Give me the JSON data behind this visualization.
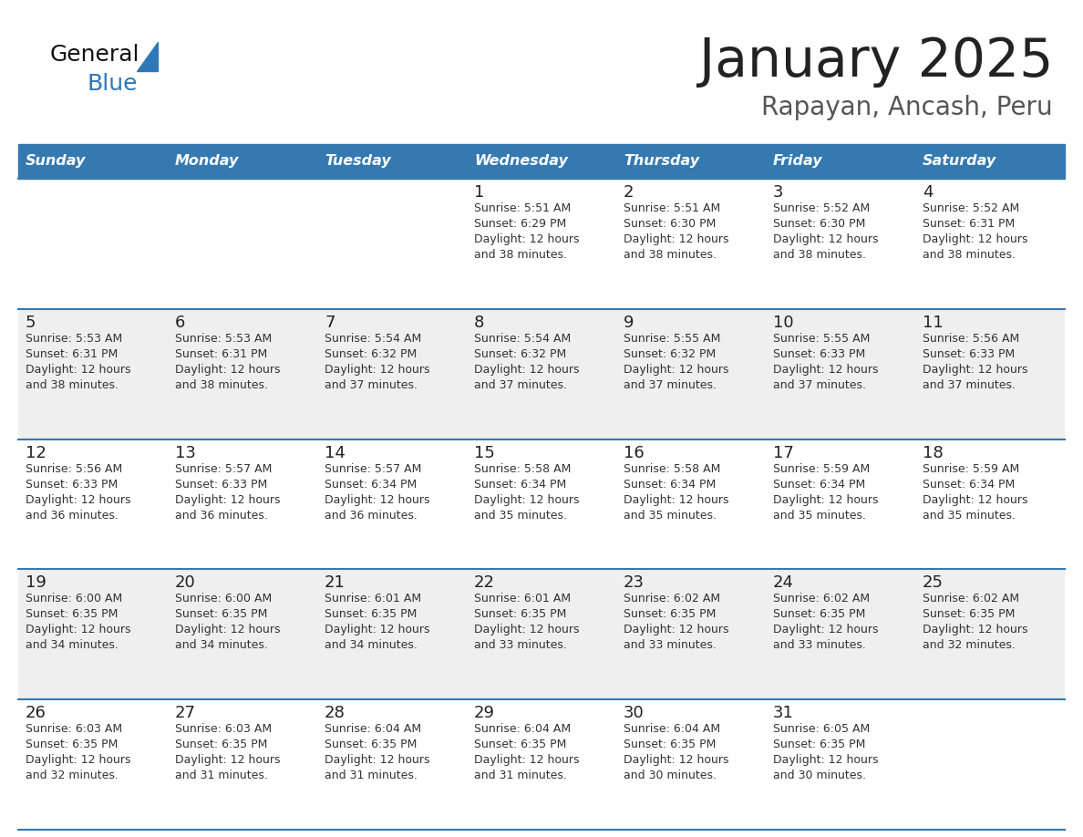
{
  "title": "January 2025",
  "subtitle": "Rapayan, Ancash, Peru",
  "header_color": "#3579B1",
  "header_text_color": "#FFFFFF",
  "cell_bg_color": "#EFEFEF",
  "cell_bg_white": "#FFFFFF",
  "border_color": "#3579B1",
  "day_names": [
    "Sunday",
    "Monday",
    "Tuesday",
    "Wednesday",
    "Thursday",
    "Friday",
    "Saturday"
  ],
  "title_color": "#222222",
  "subtitle_color": "#555555",
  "day_num_color": "#222222",
  "info_color": "#333333",
  "logo_general_color": "#111111",
  "logo_blue_color": "#2E78B8",
  "calendar_data": [
    {
      "day": 1,
      "col": 3,
      "row": 0,
      "sunrise": "5:51 AM",
      "sunset": "6:29 PM",
      "daylight_hours": 12,
      "daylight_mins": 38
    },
    {
      "day": 2,
      "col": 4,
      "row": 0,
      "sunrise": "5:51 AM",
      "sunset": "6:30 PM",
      "daylight_hours": 12,
      "daylight_mins": 38
    },
    {
      "day": 3,
      "col": 5,
      "row": 0,
      "sunrise": "5:52 AM",
      "sunset": "6:30 PM",
      "daylight_hours": 12,
      "daylight_mins": 38
    },
    {
      "day": 4,
      "col": 6,
      "row": 0,
      "sunrise": "5:52 AM",
      "sunset": "6:31 PM",
      "daylight_hours": 12,
      "daylight_mins": 38
    },
    {
      "day": 5,
      "col": 0,
      "row": 1,
      "sunrise": "5:53 AM",
      "sunset": "6:31 PM",
      "daylight_hours": 12,
      "daylight_mins": 38
    },
    {
      "day": 6,
      "col": 1,
      "row": 1,
      "sunrise": "5:53 AM",
      "sunset": "6:31 PM",
      "daylight_hours": 12,
      "daylight_mins": 38
    },
    {
      "day": 7,
      "col": 2,
      "row": 1,
      "sunrise": "5:54 AM",
      "sunset": "6:32 PM",
      "daylight_hours": 12,
      "daylight_mins": 37
    },
    {
      "day": 8,
      "col": 3,
      "row": 1,
      "sunrise": "5:54 AM",
      "sunset": "6:32 PM",
      "daylight_hours": 12,
      "daylight_mins": 37
    },
    {
      "day": 9,
      "col": 4,
      "row": 1,
      "sunrise": "5:55 AM",
      "sunset": "6:32 PM",
      "daylight_hours": 12,
      "daylight_mins": 37
    },
    {
      "day": 10,
      "col": 5,
      "row": 1,
      "sunrise": "5:55 AM",
      "sunset": "6:33 PM",
      "daylight_hours": 12,
      "daylight_mins": 37
    },
    {
      "day": 11,
      "col": 6,
      "row": 1,
      "sunrise": "5:56 AM",
      "sunset": "6:33 PM",
      "daylight_hours": 12,
      "daylight_mins": 37
    },
    {
      "day": 12,
      "col": 0,
      "row": 2,
      "sunrise": "5:56 AM",
      "sunset": "6:33 PM",
      "daylight_hours": 12,
      "daylight_mins": 36
    },
    {
      "day": 13,
      "col": 1,
      "row": 2,
      "sunrise": "5:57 AM",
      "sunset": "6:33 PM",
      "daylight_hours": 12,
      "daylight_mins": 36
    },
    {
      "day": 14,
      "col": 2,
      "row": 2,
      "sunrise": "5:57 AM",
      "sunset": "6:34 PM",
      "daylight_hours": 12,
      "daylight_mins": 36
    },
    {
      "day": 15,
      "col": 3,
      "row": 2,
      "sunrise": "5:58 AM",
      "sunset": "6:34 PM",
      "daylight_hours": 12,
      "daylight_mins": 35
    },
    {
      "day": 16,
      "col": 4,
      "row": 2,
      "sunrise": "5:58 AM",
      "sunset": "6:34 PM",
      "daylight_hours": 12,
      "daylight_mins": 35
    },
    {
      "day": 17,
      "col": 5,
      "row": 2,
      "sunrise": "5:59 AM",
      "sunset": "6:34 PM",
      "daylight_hours": 12,
      "daylight_mins": 35
    },
    {
      "day": 18,
      "col": 6,
      "row": 2,
      "sunrise": "5:59 AM",
      "sunset": "6:34 PM",
      "daylight_hours": 12,
      "daylight_mins": 35
    },
    {
      "day": 19,
      "col": 0,
      "row": 3,
      "sunrise": "6:00 AM",
      "sunset": "6:35 PM",
      "daylight_hours": 12,
      "daylight_mins": 34
    },
    {
      "day": 20,
      "col": 1,
      "row": 3,
      "sunrise": "6:00 AM",
      "sunset": "6:35 PM",
      "daylight_hours": 12,
      "daylight_mins": 34
    },
    {
      "day": 21,
      "col": 2,
      "row": 3,
      "sunrise": "6:01 AM",
      "sunset": "6:35 PM",
      "daylight_hours": 12,
      "daylight_mins": 34
    },
    {
      "day": 22,
      "col": 3,
      "row": 3,
      "sunrise": "6:01 AM",
      "sunset": "6:35 PM",
      "daylight_hours": 12,
      "daylight_mins": 33
    },
    {
      "day": 23,
      "col": 4,
      "row": 3,
      "sunrise": "6:02 AM",
      "sunset": "6:35 PM",
      "daylight_hours": 12,
      "daylight_mins": 33
    },
    {
      "day": 24,
      "col": 5,
      "row": 3,
      "sunrise": "6:02 AM",
      "sunset": "6:35 PM",
      "daylight_hours": 12,
      "daylight_mins": 33
    },
    {
      "day": 25,
      "col": 6,
      "row": 3,
      "sunrise": "6:02 AM",
      "sunset": "6:35 PM",
      "daylight_hours": 12,
      "daylight_mins": 32
    },
    {
      "day": 26,
      "col": 0,
      "row": 4,
      "sunrise": "6:03 AM",
      "sunset": "6:35 PM",
      "daylight_hours": 12,
      "daylight_mins": 32
    },
    {
      "day": 27,
      "col": 1,
      "row": 4,
      "sunrise": "6:03 AM",
      "sunset": "6:35 PM",
      "daylight_hours": 12,
      "daylight_mins": 31
    },
    {
      "day": 28,
      "col": 2,
      "row": 4,
      "sunrise": "6:04 AM",
      "sunset": "6:35 PM",
      "daylight_hours": 12,
      "daylight_mins": 31
    },
    {
      "day": 29,
      "col": 3,
      "row": 4,
      "sunrise": "6:04 AM",
      "sunset": "6:35 PM",
      "daylight_hours": 12,
      "daylight_mins": 31
    },
    {
      "day": 30,
      "col": 4,
      "row": 4,
      "sunrise": "6:04 AM",
      "sunset": "6:35 PM",
      "daylight_hours": 12,
      "daylight_mins": 30
    },
    {
      "day": 31,
      "col": 5,
      "row": 4,
      "sunrise": "6:05 AM",
      "sunset": "6:35 PM",
      "daylight_hours": 12,
      "daylight_mins": 30
    }
  ]
}
